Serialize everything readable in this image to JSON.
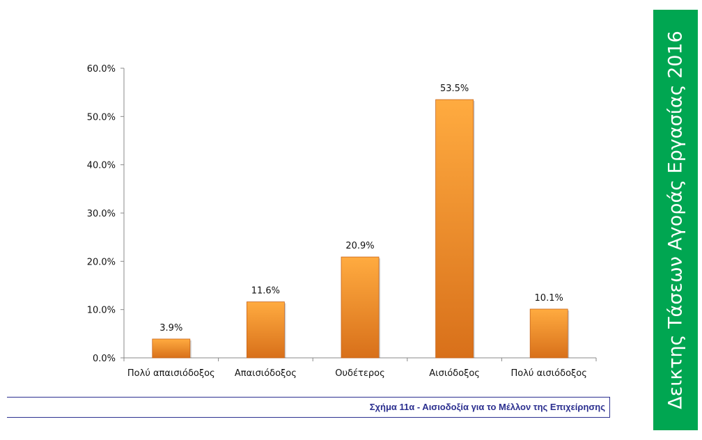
{
  "colors": {
    "bar_light": "#ffab40",
    "bar_dark": "#d8701a",
    "side_band": "#00a651",
    "caption_text": "#2b2f8f",
    "axis": "#888888"
  },
  "side_title": "Δεικτης Τάσεων Αγοράς Εργασίας 2016",
  "caption": "Σχήμα 11α - Αισιοδοξία για το Μέλλον της Επιχείρησης",
  "chart_data": {
    "type": "bar",
    "categories": [
      "Πολύ απαισιόδοξος",
      "Απαισιόδοξος",
      "Ουδέτερος",
      "Αισιόδοξος",
      "Πολύ αισιόδοξος"
    ],
    "values": [
      3.9,
      11.6,
      20.9,
      53.5,
      10.1
    ],
    "data_labels": [
      "3.9%",
      "11.6%",
      "20.9%",
      "53.5%",
      "10.1%"
    ],
    "y_ticks": [
      "0.0%",
      "10.0%",
      "20.0%",
      "30.0%",
      "40.0%",
      "50.0%",
      "60.0%"
    ],
    "ylim": [
      0,
      60
    ],
    "title": "",
    "xlabel": "",
    "ylabel": "",
    "grid": false,
    "legend": "none"
  }
}
